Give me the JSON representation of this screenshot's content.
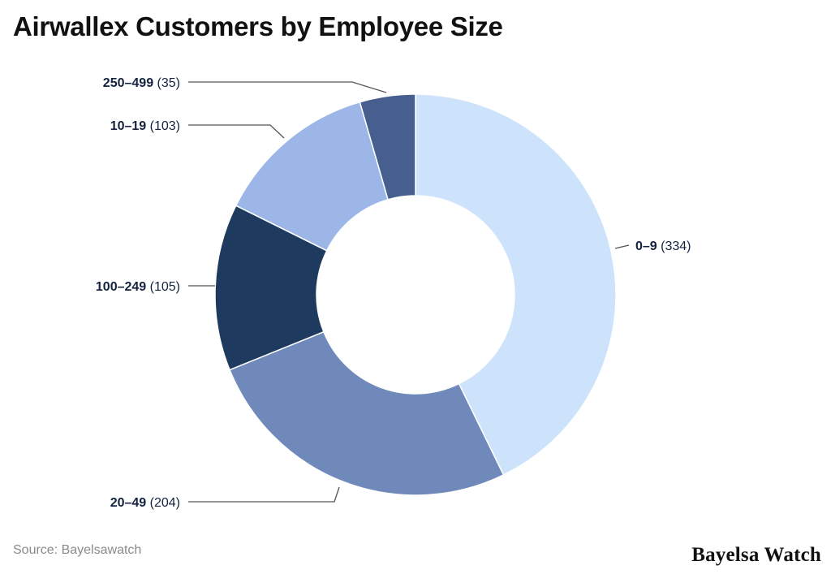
{
  "title": "Airwallex Customers by Employee Size",
  "source": "Source: Bayelsawatch",
  "brand": "Bayelsa Watch",
  "chart_data": {
    "type": "pie",
    "variant": "donut",
    "title": "Airwallex Customers by Employee Size",
    "categories": [
      "0–9",
      "20–49",
      "100–249",
      "10–19",
      "250–499"
    ],
    "values": [
      334,
      204,
      105,
      103,
      35
    ],
    "labels": [
      "0–9",
      "20–49",
      "100–249",
      "10–19",
      "250–499"
    ],
    "value_labels": [
      "(334)",
      "(204)",
      "(105)",
      "(103)",
      "(35)"
    ],
    "colors": [
      "#cce3fb",
      "#7089bb",
      "#1f3a5f",
      "#9db6e8",
      "#465f8e"
    ],
    "start_angle": "12 o'clock",
    "direction": "clockwise",
    "legend": "none"
  }
}
